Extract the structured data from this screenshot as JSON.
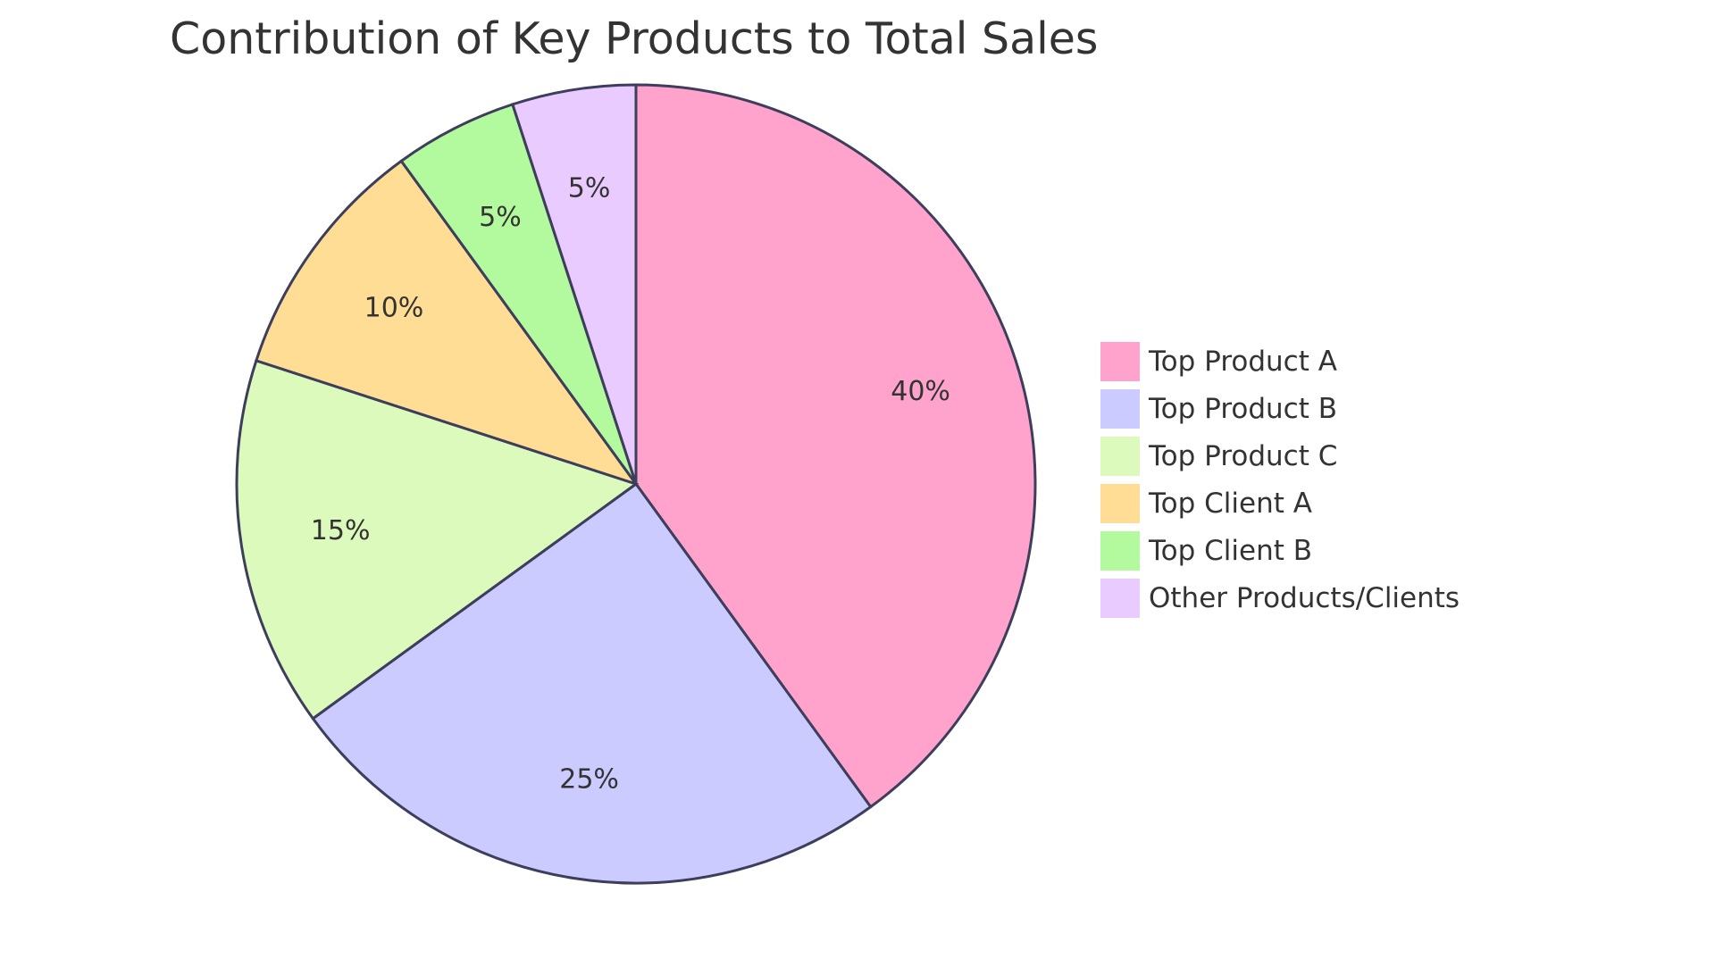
{
  "chart_data": {
    "type": "pie",
    "title": "Contribution of Key Products to Total Sales",
    "slices": [
      {
        "label": "Top Product A",
        "value": 40,
        "display": "40%",
        "color": "#ffa3cd"
      },
      {
        "label": "Top Product B",
        "value": 25,
        "display": "25%",
        "color": "#cbcbff"
      },
      {
        "label": "Top Product C",
        "value": 15,
        "display": "15%",
        "color": "#dcfabb"
      },
      {
        "label": "Top Client A",
        "value": 10,
        "display": "10%",
        "color": "#ffdd95"
      },
      {
        "label": "Top Client B",
        "value": 5,
        "display": "5%",
        "color": "#b3fa9e"
      },
      {
        "label": "Other Products/Clients",
        "value": 5,
        "display": "5%",
        "color": "#e9cbff"
      }
    ],
    "legend_position": "right"
  }
}
